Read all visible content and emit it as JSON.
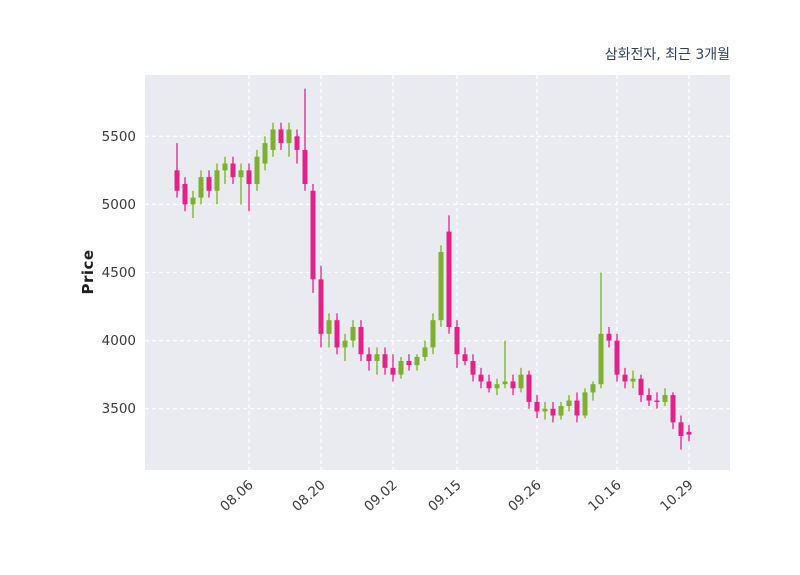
{
  "chart": {
    "title": "삼화전자, 최근 3개월",
    "ylabel": "Price"
  },
  "chart_data": {
    "type": "candlestick",
    "title": "삼화전자, 최근 3개월",
    "ylabel": "Price",
    "xlabel": "",
    "ylim": [
      3050,
      5950
    ],
    "yticks": [
      3500,
      4000,
      4500,
      5000,
      5500
    ],
    "xticks": [
      {
        "index": 9,
        "label": "08.06"
      },
      {
        "index": 18,
        "label": "08.20"
      },
      {
        "index": 27,
        "label": "09.02"
      },
      {
        "index": 35,
        "label": "09.15"
      },
      {
        "index": 45,
        "label": "09.26"
      },
      {
        "index": 55,
        "label": "10.16"
      },
      {
        "index": 64,
        "label": "10.29"
      }
    ],
    "grid": true,
    "legend": "none",
    "colors": {
      "up": "#7cb02e",
      "down": "#e02487",
      "plot_bg": "#eaeaf1",
      "grid": "#ffffff",
      "title": "#30415d",
      "tick": "#3b3b3b"
    },
    "candles_format": [
      "open",
      "high",
      "low",
      "close"
    ],
    "candles": [
      [
        5250,
        5450,
        5050,
        5100
      ],
      [
        5150,
        5200,
        4950,
        5000
      ],
      [
        5000,
        5100,
        4900,
        5050
      ],
      [
        5050,
        5250,
        5000,
        5200
      ],
      [
        5200,
        5250,
        5050,
        5100
      ],
      [
        5100,
        5300,
        5000,
        5250
      ],
      [
        5250,
        5350,
        5150,
        5300
      ],
      [
        5300,
        5350,
        5150,
        5200
      ],
      [
        5200,
        5300,
        5000,
        5250
      ],
      [
        5250,
        5300,
        4950,
        5150
      ],
      [
        5150,
        5400,
        5100,
        5350
      ],
      [
        5300,
        5500,
        5250,
        5450
      ],
      [
        5400,
        5600,
        5350,
        5550
      ],
      [
        5550,
        5600,
        5400,
        5450
      ],
      [
        5450,
        5600,
        5350,
        5550
      ],
      [
        5500,
        5550,
        5300,
        5400
      ],
      [
        5400,
        5850,
        5100,
        5150
      ],
      [
        5100,
        5150,
        4350,
        4450
      ],
      [
        4450,
        4550,
        3950,
        4050
      ],
      [
        4050,
        4200,
        3950,
        4150
      ],
      [
        4150,
        4200,
        3900,
        3950
      ],
      [
        3950,
        4050,
        3850,
        4000
      ],
      [
        4000,
        4150,
        3950,
        4100
      ],
      [
        4100,
        4150,
        3850,
        3900
      ],
      [
        3900,
        3950,
        3780,
        3850
      ],
      [
        3850,
        3950,
        3750,
        3900
      ],
      [
        3900,
        3950,
        3750,
        3800
      ],
      [
        3800,
        3900,
        3700,
        3750
      ],
      [
        3750,
        3880,
        3720,
        3850
      ],
      [
        3850,
        3900,
        3780,
        3820
      ],
      [
        3820,
        3900,
        3780,
        3880
      ],
      [
        3880,
        4000,
        3850,
        3950
      ],
      [
        3950,
        4200,
        3900,
        4150
      ],
      [
        4150,
        4700,
        4100,
        4650
      ],
      [
        4800,
        4920,
        4050,
        4100
      ],
      [
        4100,
        4150,
        3800,
        3900
      ],
      [
        3900,
        3950,
        3820,
        3850
      ],
      [
        3850,
        3900,
        3700,
        3750
      ],
      [
        3750,
        3800,
        3650,
        3700
      ],
      [
        3700,
        3750,
        3620,
        3650
      ],
      [
        3650,
        3720,
        3600,
        3680
      ],
      [
        3680,
        4000,
        3650,
        3700
      ],
      [
        3700,
        3750,
        3600,
        3650
      ],
      [
        3650,
        3800,
        3620,
        3750
      ],
      [
        3750,
        3780,
        3500,
        3550
      ],
      [
        3550,
        3600,
        3430,
        3480
      ],
      [
        3480,
        3550,
        3420,
        3500
      ],
      [
        3500,
        3550,
        3400,
        3450
      ],
      [
        3450,
        3550,
        3420,
        3520
      ],
      [
        3520,
        3600,
        3480,
        3560
      ],
      [
        3560,
        3620,
        3400,
        3450
      ],
      [
        3450,
        3650,
        3430,
        3620
      ],
      [
        3620,
        3700,
        3560,
        3680
      ],
      [
        3680,
        4500,
        3650,
        4050
      ],
      [
        4050,
        4100,
        3950,
        4000
      ],
      [
        4000,
        4050,
        3700,
        3750
      ],
      [
        3750,
        3800,
        3650,
        3700
      ],
      [
        3700,
        3780,
        3650,
        3720
      ],
      [
        3720,
        3750,
        3550,
        3600
      ],
      [
        3600,
        3650,
        3520,
        3560
      ],
      [
        3560,
        3620,
        3500,
        3550
      ],
      [
        3550,
        3650,
        3520,
        3600
      ],
      [
        3600,
        3620,
        3350,
        3400
      ],
      [
        3400,
        3450,
        3200,
        3300
      ],
      [
        3330,
        3380,
        3260,
        3310
      ]
    ]
  }
}
